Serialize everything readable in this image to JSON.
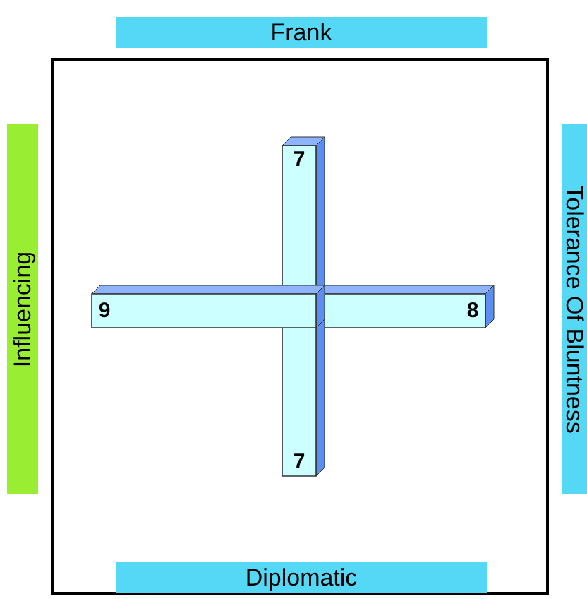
{
  "chart_data": {
    "type": "other",
    "categories": [
      "Frank",
      "Tolerance Of Bluntness",
      "Diplomatic",
      "Influencing"
    ],
    "values": [
      7,
      8,
      7,
      9
    ],
    "color": "#ccffff",
    "data_labels": true
  }
}
